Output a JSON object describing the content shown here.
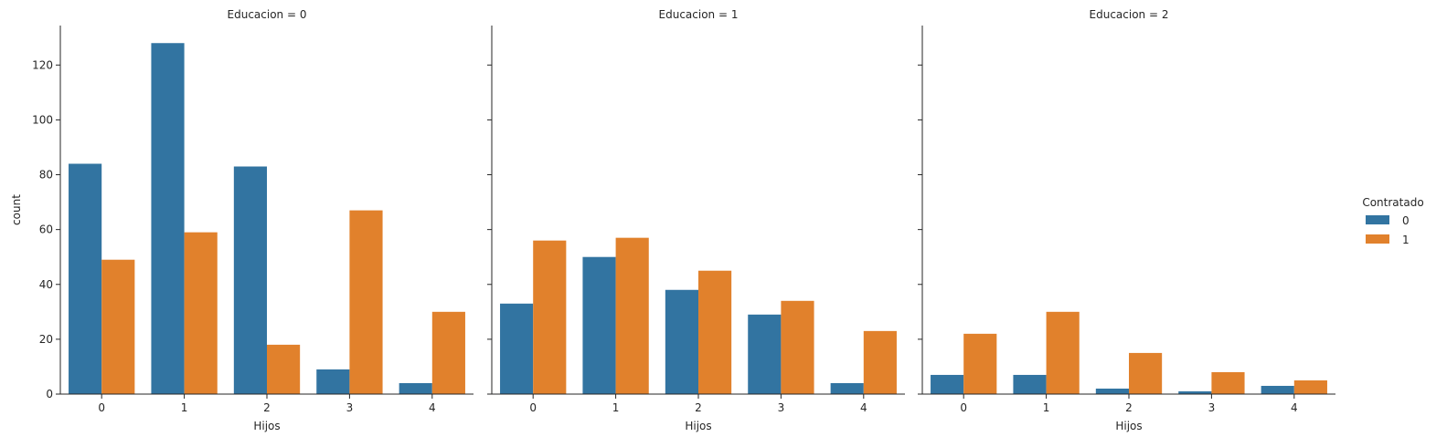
{
  "chart_data": {
    "type": "bar",
    "ylabel": "count",
    "xlabel": "Hijos",
    "categories": [
      "0",
      "1",
      "2",
      "3",
      "4"
    ],
    "yticks": [
      0,
      20,
      40,
      60,
      80,
      100,
      120
    ],
    "ylim": [
      0,
      134.4
    ],
    "grid": false,
    "legend": {
      "title": "Contratado",
      "placement": "right",
      "entries": [
        {
          "label": "0",
          "color": "#3274a1"
        },
        {
          "label": "1",
          "color": "#e1812c"
        }
      ]
    },
    "panels": [
      {
        "title": "Educacion = 0",
        "series": [
          {
            "values": [
              84,
              128,
              83,
              9,
              4
            ]
          },
          {
            "values": [
              49,
              59,
              18,
              67,
              30
            ]
          }
        ]
      },
      {
        "title": "Educacion = 1",
        "series": [
          {
            "values": [
              33,
              50,
              38,
              29,
              4
            ]
          },
          {
            "values": [
              56,
              57,
              45,
              34,
              23
            ]
          }
        ]
      },
      {
        "title": "Educacion = 2",
        "series": [
          {
            "values": [
              7,
              7,
              2,
              1,
              3
            ]
          },
          {
            "values": [
              22,
              30,
              15,
              8,
              5
            ]
          }
        ]
      }
    ]
  }
}
